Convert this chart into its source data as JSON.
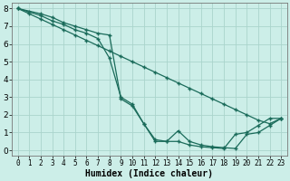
{
  "xlabel": "Humidex (Indice chaleur)",
  "bg_color": "#cceee8",
  "grid_color": "#aad4cc",
  "line_color": "#1a6b5a",
  "xlim_min": -0.5,
  "xlim_max": 23.5,
  "ylim_min": -0.3,
  "ylim_max": 8.3,
  "xticks": [
    0,
    1,
    2,
    3,
    4,
    5,
    6,
    7,
    8,
    9,
    10,
    11,
    12,
    13,
    14,
    15,
    16,
    17,
    18,
    19,
    20,
    21,
    22,
    23
  ],
  "yticks": [
    0,
    1,
    2,
    3,
    4,
    5,
    6,
    7,
    8
  ],
  "series": [
    {
      "x": [
        0,
        1,
        2,
        3,
        4,
        5,
        6,
        7,
        8,
        9,
        10,
        11,
        12,
        13,
        14,
        15,
        16,
        17,
        18,
        19,
        20,
        21,
        22,
        23
      ],
      "y": [
        8,
        7.7,
        7.4,
        7.1,
        6.8,
        6.5,
        6.2,
        5.9,
        5.6,
        5.3,
        5.0,
        4.7,
        4.4,
        4.1,
        3.8,
        3.5,
        3.2,
        2.9,
        2.6,
        2.3,
        2.0,
        1.7,
        1.5,
        1.8
      ]
    },
    {
      "x": [
        0,
        1,
        2,
        3,
        4,
        5,
        6,
        7,
        8,
        9,
        10,
        11,
        12,
        13,
        14,
        15,
        16,
        17,
        18,
        19,
        20,
        21,
        22,
        23
      ],
      "y": [
        8,
        7.8,
        7.6,
        7.3,
        7.1,
        6.8,
        6.6,
        6.3,
        5.2,
        3.0,
        2.6,
        1.5,
        0.5,
        0.5,
        1.1,
        0.5,
        0.3,
        0.2,
        0.15,
        0.1,
        0.9,
        1.0,
        1.4,
        1.8
      ]
    },
    {
      "x": [
        0,
        2,
        3,
        4,
        5,
        6,
        7,
        8,
        9,
        10,
        11,
        12,
        13,
        14,
        15,
        16,
        17,
        18,
        19,
        20,
        21,
        22,
        23
      ],
      "y": [
        8,
        7.7,
        7.5,
        7.2,
        7.0,
        6.8,
        6.6,
        6.5,
        2.9,
        2.5,
        1.5,
        0.6,
        0.5,
        0.5,
        0.3,
        0.2,
        0.15,
        0.1,
        0.9,
        1.0,
        1.4,
        1.8,
        1.8
      ]
    }
  ]
}
